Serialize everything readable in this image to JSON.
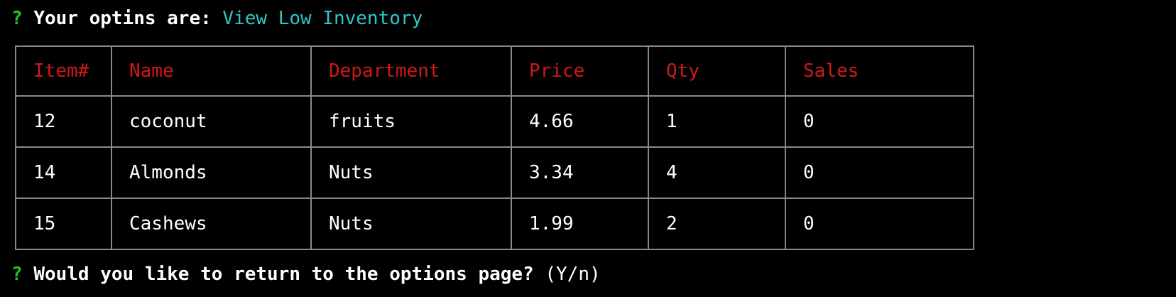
{
  "colors": {
    "background": "#000000",
    "prompt_marker": "#22c222",
    "answer": "#2ec7c7",
    "header_text": "#d01818",
    "table_border": "#8a8a8a"
  },
  "prompt1": {
    "marker": "?",
    "question": "Your optins are:",
    "answer": "View Low Inventory"
  },
  "table": {
    "headers": [
      "Item#",
      "Name",
      "Department",
      "Price",
      "Qty",
      "Sales"
    ],
    "rows": [
      [
        "12",
        "coconut",
        "fruits",
        "4.66",
        "1",
        "0"
      ],
      [
        "14",
        "Almonds",
        "Nuts",
        "3.34",
        "4",
        "0"
      ],
      [
        "15",
        "Cashews",
        "Nuts",
        "1.99",
        "2",
        "0"
      ]
    ]
  },
  "prompt2": {
    "marker": "?",
    "question": "Would you like to return to the options page?",
    "hint": "(Y/n)"
  }
}
